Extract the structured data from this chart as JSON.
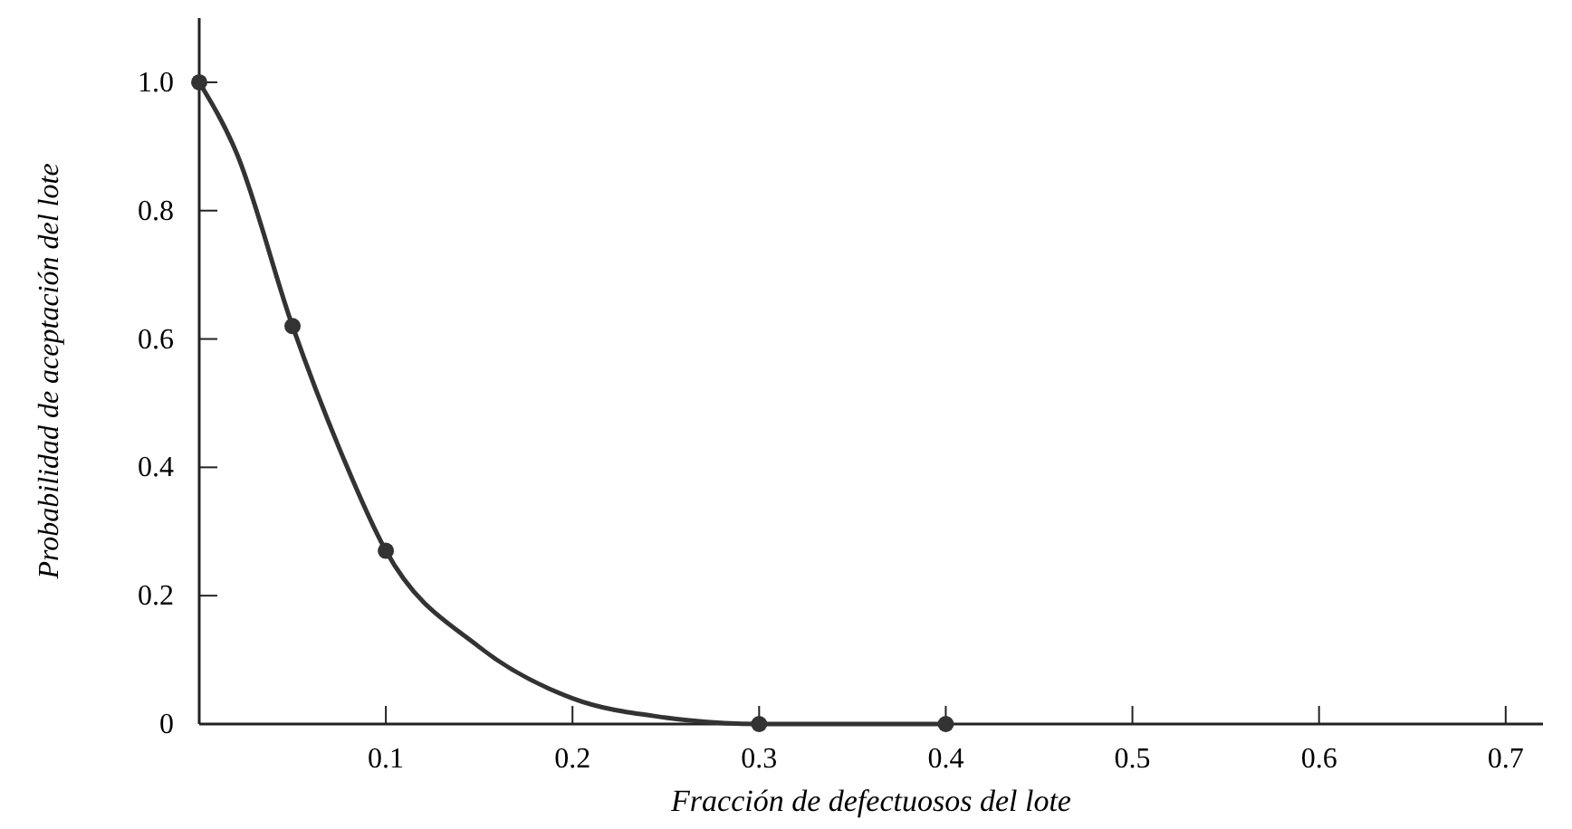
{
  "chart_data": {
    "type": "line",
    "xlabel": "Fracción de defectuosos del lote",
    "ylabel": "Probabilidad de aceptación del lote",
    "xlim": [
      0,
      0.72
    ],
    "ylim": [
      0,
      1.1
    ],
    "xticks": [
      0.1,
      0.2,
      0.3,
      0.4,
      0.5,
      0.6,
      0.7
    ],
    "yticks": [
      {
        "value": 0,
        "label": "0"
      },
      0.2,
      0.4,
      0.6,
      0.8,
      {
        "value": 1,
        "label": "1.0"
      }
    ],
    "grid": false,
    "series": [
      {
        "color": "#333333",
        "marker": "none",
        "line_style": "solid",
        "x": [
          0,
          0.02,
          0.05,
          0.075,
          0.1,
          0.15,
          0.2,
          0.25,
          0.3,
          0.4
        ],
        "values": [
          1,
          0.89,
          0.62,
          0.43,
          0.27,
          0.12,
          0.04,
          0.01,
          0,
          0
        ]
      },
      {
        "type": "scatter",
        "color": "#333333",
        "marker": "circle",
        "x": [
          0,
          0.05,
          0.1,
          0.3,
          0.4
        ],
        "values": [
          1,
          0.62,
          0.27,
          0,
          0
        ]
      }
    ]
  }
}
